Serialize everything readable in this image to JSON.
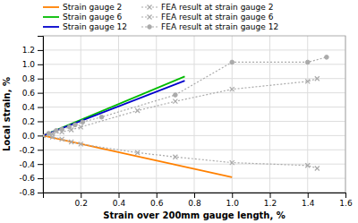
{
  "chart_data": {
    "type": "line",
    "xlabel": "Strain over 200mm gauge length, %",
    "ylabel": "Local strain, %",
    "xlim": [
      0,
      1.6
    ],
    "ylim": [
      -0.8,
      1.4
    ],
    "xticks": [
      0.2,
      0.4,
      0.6,
      0.8,
      {
        "value": 1.0,
        "label": "1.0"
      },
      1.2,
      1.4,
      1.6
    ],
    "yticks": [
      -0.8,
      -0.6,
      -0.4,
      -0.2,
      {
        "value": 0.0,
        "label": "0.0"
      },
      0.2,
      0.4,
      0.6,
      0.8,
      {
        "value": 1.0,
        "label": "1.0"
      },
      1.2
    ],
    "grid": true,
    "legend": "top",
    "series": [
      {
        "name": "Strain gauge 2",
        "color": "#FF8000",
        "line_style": "solid",
        "x": [
          0,
          1.0
        ],
        "values": [
          0,
          -0.585
        ]
      },
      {
        "name": "Strain gauge 6",
        "color": "#00BB00",
        "line_style": "solid",
        "x": [
          0,
          0.75
        ],
        "values": [
          0,
          0.83
        ]
      },
      {
        "name": "Strain gauge 12",
        "color": "#0000CC",
        "line_style": "solid",
        "x": [
          0,
          0.75
        ],
        "values": [
          0,
          0.77
        ]
      },
      {
        "name": "FEA result at strain gauge 2",
        "color": "#AAAAAA",
        "line_style": "dotted",
        "marker": "x",
        "x": [
          0.0,
          0.05,
          0.1,
          0.15,
          0.2,
          0.5,
          0.7,
          1.0,
          1.4,
          1.45
        ],
        "values": [
          0.0,
          -0.02,
          -0.05,
          -0.09,
          -0.12,
          -0.24,
          -0.3,
          -0.38,
          -0.42,
          -0.46
        ]
      },
      {
        "name": "FEA result at strain gauge 6",
        "color": "#AAAAAA",
        "line_style": "dotted",
        "marker": "x",
        "x": [
          0.0,
          0.05,
          0.1,
          0.15,
          0.2,
          0.5,
          0.7,
          1.0,
          1.4,
          1.45
        ],
        "values": [
          0.0,
          0.02,
          0.05,
          0.08,
          0.12,
          0.35,
          0.48,
          0.65,
          0.76,
          0.8
        ]
      },
      {
        "name": "FEA result at strain gauge 12",
        "color": "#AAAAAA",
        "line_style": "dotted",
        "marker": "circle",
        "x": [
          0.03,
          0.07,
          0.1,
          0.14,
          0.17,
          0.21,
          0.31,
          0.7,
          1.0,
          1.4,
          1.5
        ],
        "values": [
          0.03,
          0.07,
          0.09,
          0.12,
          0.15,
          0.19,
          0.26,
          0.57,
          1.03,
          1.03,
          1.1
        ]
      }
    ]
  }
}
